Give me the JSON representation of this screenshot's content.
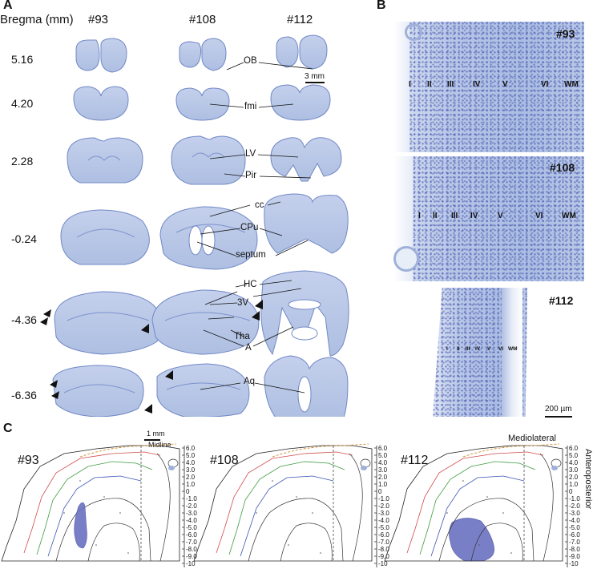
{
  "panel_a": {
    "letter": "A",
    "bregma_header": "Bregma (mm)",
    "animals": [
      "#93",
      "#108",
      "#112"
    ],
    "bregma_levels": [
      "5.16",
      "4.20",
      "2.28",
      "-0.24",
      "-4.36",
      "-6.36"
    ],
    "scale_bar": "3 mm",
    "region_labels": {
      "ob": "OB",
      "fmi": "fmi",
      "lv": "LV",
      "pir": "Pir",
      "cc": "cc",
      "cpu": "CPu",
      "septum": "septum",
      "hc": "HC",
      "v3": "3V",
      "tha": "Tha",
      "a": "A",
      "aq": "Aq"
    }
  },
  "panel_b": {
    "letter": "B",
    "animals": [
      "#93",
      "#108",
      "#112"
    ],
    "layers": [
      "I",
      "II",
      "III",
      "IV",
      "V",
      "VI",
      "WM"
    ],
    "scale_bar": "200 µm"
  },
  "panel_c": {
    "letter": "C",
    "animals": [
      "#93",
      "#108",
      "#112"
    ],
    "scale_bar": "1 mm",
    "midline": "Midline",
    "axis_top": "Mediolateral",
    "axis_right": "Anteroposterior",
    "ap_ticks": [
      "6.0",
      "5.0",
      "4.0",
      "3.0",
      "2.0",
      "1.0",
      "0",
      "-1.0",
      "-2.0",
      "-3.0",
      "-4.0",
      "-5.0",
      "-6.0",
      "-7.0",
      "-8.0",
      "-9.0",
      "-10"
    ]
  },
  "colors": {
    "tissue_fill": "#b9c7e6",
    "tissue_edge": "#6f86c4",
    "lesion": "#6a72c0",
    "atlas_red": "#d04a4a",
    "atlas_green": "#3f9a3f",
    "atlas_blue": "#3b54b5",
    "atlas_orange": "#d08a2a"
  }
}
